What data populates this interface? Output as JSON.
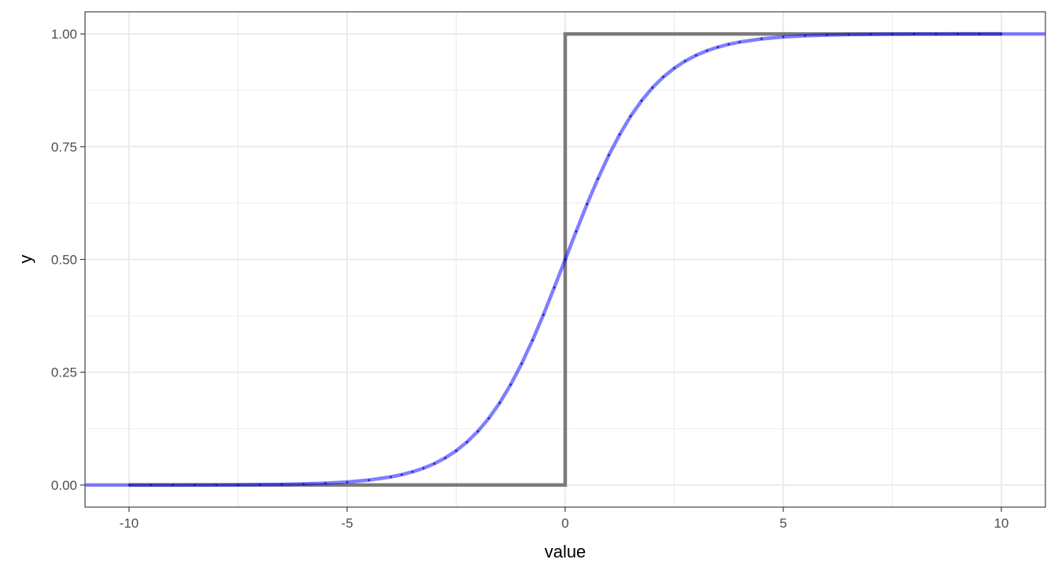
{
  "chart_data": {
    "type": "line",
    "title": "",
    "xlabel": "value",
    "ylabel": "y",
    "xlim": [
      -11.01,
      11.01
    ],
    "ylim": [
      -0.049,
      1.049
    ],
    "grid": true,
    "x_ticks": [
      -10,
      -5,
      0,
      5,
      10
    ],
    "x_tick_labels": [
      "-10",
      "-5",
      "0",
      "5",
      "10"
    ],
    "x_minor_ticks": [
      -7.5,
      -2.5,
      2.5,
      7.5
    ],
    "y_ticks": [
      0,
      0.25,
      0.5,
      0.75,
      1
    ],
    "y_tick_labels": [
      "0.00",
      "0.25",
      "0.50",
      "0.75",
      "1.00"
    ],
    "y_minor_ticks": [
      0.125,
      0.375,
      0.625,
      0.875
    ],
    "colors": {
      "step": "#7a7a7a",
      "curve": "#0000ff",
      "points": "#1a1a66",
      "grid": "#ebebeb",
      "border": "#333333"
    },
    "series": [
      {
        "kind": "step",
        "x": [
          -10,
          0,
          0,
          10
        ],
        "y": [
          0,
          0,
          1,
          1
        ]
      },
      {
        "kind": "curve",
        "x": [
          -11,
          -10.5,
          -10,
          -9.5,
          -9,
          -8.5,
          -8,
          -7.5,
          -7,
          -6.5,
          -6,
          -5.5,
          -5,
          -4.5,
          -4,
          -3.75,
          -3.5,
          -3.25,
          -3,
          -2.75,
          -2.5,
          -2.25,
          -2,
          -1.75,
          -1.5,
          -1.25,
          -1,
          -0.75,
          -0.5,
          -0.25,
          0,
          0.25,
          0.5,
          0.75,
          1,
          1.25,
          1.5,
          1.75,
          2,
          2.25,
          2.5,
          2.75,
          3,
          3.25,
          3.5,
          3.75,
          4,
          4.5,
          5,
          5.5,
          6,
          6.5,
          7,
          7.5,
          8,
          8.5,
          9,
          9.5,
          10,
          10.5,
          11
        ],
        "y": [
          0.0,
          0.0,
          0.0,
          0.0001,
          0.0001,
          0.0002,
          0.0003,
          0.0006,
          0.0009,
          0.0015,
          0.0025,
          0.0041,
          0.0067,
          0.011,
          0.018,
          0.023,
          0.0293,
          0.0373,
          0.0474,
          0.0601,
          0.0759,
          0.0953,
          0.1192,
          0.148,
          0.1824,
          0.2227,
          0.2689,
          0.3208,
          0.3775,
          0.4378,
          0.5,
          0.5622,
          0.6225,
          0.6792,
          0.7311,
          0.7773,
          0.8176,
          0.852,
          0.8808,
          0.9047,
          0.9241,
          0.9399,
          0.9526,
          0.9627,
          0.9707,
          0.977,
          0.982,
          0.989,
          0.9933,
          0.9959,
          0.9975,
          0.9985,
          0.9991,
          0.9994,
          0.9997,
          0.9998,
          0.9999,
          0.9999,
          1.0,
          1.0,
          1.0
        ]
      },
      {
        "kind": "points",
        "x": [
          -10,
          -9.5,
          -9,
          -8.5,
          -8,
          -7.5,
          -7,
          -6.5,
          -6,
          -5.5,
          -5,
          -4.5,
          -4,
          -3.75,
          -3.5,
          -3.25,
          -3,
          -2.75,
          -2.5,
          -2.25,
          -2,
          -1.75,
          -1.5,
          -1.25,
          -1,
          -0.75,
          -0.5,
          -0.25,
          0,
          0.25,
          0.5,
          0.75,
          1,
          1.25,
          1.5,
          1.75,
          2,
          2.25,
          2.5,
          2.75,
          3,
          3.25,
          3.5,
          3.75,
          4,
          4.5,
          5,
          5.5,
          6,
          6.5,
          7,
          7.5,
          8,
          8.5,
          9,
          9.5,
          10
        ],
        "y": [
          0.0,
          0.0001,
          0.0001,
          0.0002,
          0.0003,
          0.0006,
          0.0009,
          0.0015,
          0.0025,
          0.0041,
          0.0067,
          0.011,
          0.018,
          0.023,
          0.0293,
          0.0373,
          0.0474,
          0.0601,
          0.0759,
          0.0953,
          0.1192,
          0.148,
          0.1824,
          0.2227,
          0.2689,
          0.3208,
          0.3775,
          0.4378,
          0.5,
          0.5622,
          0.6225,
          0.6792,
          0.7311,
          0.7773,
          0.8176,
          0.852,
          0.8808,
          0.9047,
          0.9241,
          0.9399,
          0.9526,
          0.9627,
          0.9707,
          0.977,
          0.982,
          0.989,
          0.9933,
          0.9959,
          0.9975,
          0.9985,
          0.9991,
          0.9994,
          0.9997,
          0.9998,
          0.9999,
          0.9999,
          1.0
        ]
      }
    ]
  }
}
